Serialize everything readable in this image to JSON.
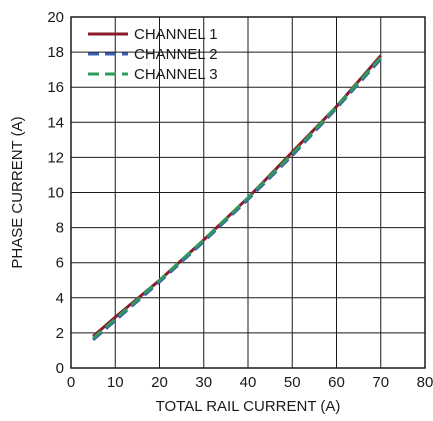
{
  "chart_data": {
    "type": "line",
    "title": "",
    "xlabel": "TOTAL RAIL CURRENT (A)",
    "ylabel": "PHASE CURRENT (A)",
    "xlim": [
      0,
      80
    ],
    "ylim": [
      0,
      20
    ],
    "x_ticks": [
      0,
      10,
      20,
      30,
      40,
      50,
      60,
      70,
      80
    ],
    "y_ticks": [
      0,
      2,
      4,
      6,
      8,
      10,
      12,
      14,
      16,
      18,
      20
    ],
    "grid": true,
    "legend_position": "top-left",
    "series": [
      {
        "name": "CHANNEL 1",
        "color": "#8b1a2b",
        "dash": "solid",
        "x": [
          5,
          10,
          20,
          30,
          40,
          50,
          60,
          70
        ],
        "y": [
          1.8,
          2.9,
          5.0,
          7.3,
          9.7,
          12.3,
          14.9,
          17.8
        ]
      },
      {
        "name": "CHANNEL 2",
        "color": "#3a5fb0",
        "dash": "dashed",
        "x": [
          5,
          10,
          20,
          30,
          40,
          50,
          60,
          70
        ],
        "y": [
          1.6,
          2.7,
          4.9,
          7.2,
          9.6,
          12.1,
          14.8,
          17.6
        ]
      },
      {
        "name": "CHANNEL 3",
        "color": "#2e9b5a",
        "dash": "dashed",
        "x": [
          5,
          10,
          20,
          30,
          40,
          50,
          60,
          70
        ],
        "y": [
          1.7,
          2.8,
          5.0,
          7.3,
          9.7,
          12.2,
          14.9,
          17.7
        ]
      }
    ]
  }
}
